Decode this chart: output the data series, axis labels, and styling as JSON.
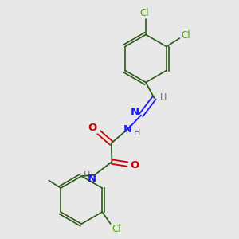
{
  "bg_color": "#e8e8e8",
  "bond_color": "#2d5a1b",
  "n_color": "#1a1aff",
  "o_color": "#cc0000",
  "cl_color": "#44aa00",
  "h_color": "#666666",
  "figsize": [
    3.0,
    3.0
  ],
  "dpi": 100,
  "xlim": [
    0,
    10
  ],
  "ylim": [
    0,
    10
  ]
}
